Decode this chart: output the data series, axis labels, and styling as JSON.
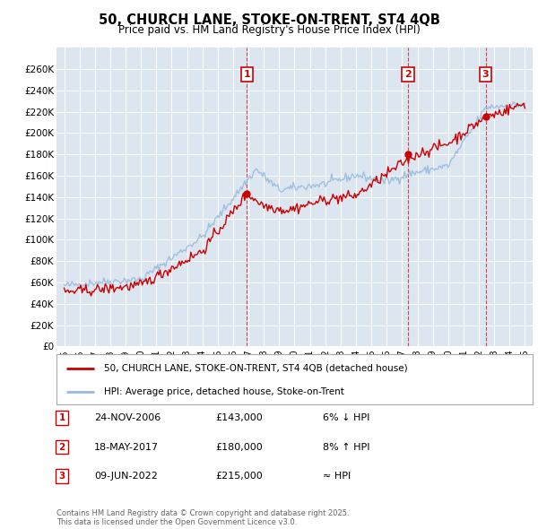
{
  "title_line1": "50, CHURCH LANE, STOKE-ON-TRENT, ST4 4QB",
  "title_line2": "Price paid vs. HM Land Registry's House Price Index (HPI)",
  "y_min": 0,
  "y_max": 280000,
  "y_ticks": [
    0,
    20000,
    40000,
    60000,
    80000,
    100000,
    120000,
    140000,
    160000,
    180000,
    200000,
    220000,
    240000,
    260000
  ],
  "y_tick_labels": [
    "£0",
    "£20K",
    "£40K",
    "£60K",
    "£80K",
    "£100K",
    "£120K",
    "£140K",
    "£160K",
    "£180K",
    "£200K",
    "£220K",
    "£240K",
    "£260K"
  ],
  "x_min": 1994.5,
  "x_max": 2025.5,
  "x_ticks": [
    1995,
    1996,
    1997,
    1998,
    1999,
    2000,
    2001,
    2002,
    2003,
    2004,
    2005,
    2006,
    2007,
    2008,
    2009,
    2010,
    2011,
    2012,
    2013,
    2014,
    2015,
    2016,
    2017,
    2018,
    2019,
    2020,
    2021,
    2022,
    2023,
    2024,
    2025
  ],
  "sale_color": "#cc0000",
  "hpi_color": "#99bbdd",
  "plot_bg_color": "#dce6f1",
  "figure_bg_color": "#ffffff",
  "grid_color": "#ffffff",
  "sale_marker_dates": [
    2006.9,
    2017.38,
    2022.44
  ],
  "sale_marker_prices": [
    143000,
    180000,
    215000
  ],
  "sale_marker_labels": [
    "1",
    "2",
    "3"
  ],
  "legend_sale_label": "50, CHURCH LANE, STOKE-ON-TRENT, ST4 4QB (detached house)",
  "legend_hpi_label": "HPI: Average price, detached house, Stoke-on-Trent",
  "table_rows": [
    [
      "1",
      "24-NOV-2006",
      "£143,000",
      "6% ↓ HPI"
    ],
    [
      "2",
      "18-MAY-2017",
      "£180,000",
      "8% ↑ HPI"
    ],
    [
      "3",
      "09-JUN-2022",
      "£215,000",
      "≈ HPI"
    ]
  ],
  "footnote": "Contains HM Land Registry data © Crown copyright and database right 2025.\nThis data is licensed under the Open Government Licence v3.0."
}
